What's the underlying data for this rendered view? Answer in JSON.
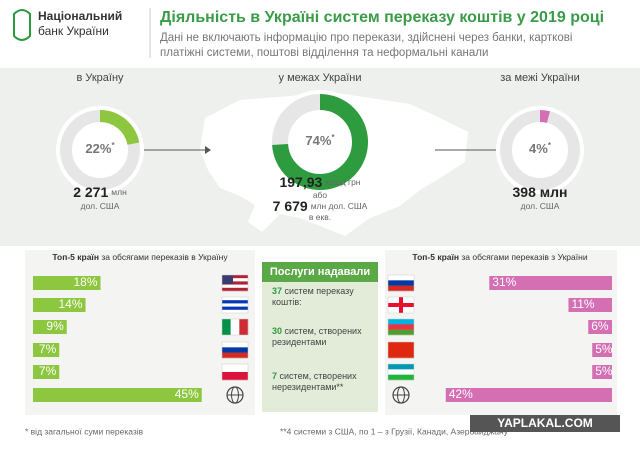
{
  "header": {
    "logo": [
      "Національний",
      "банк України"
    ],
    "title": "Діяльність в Україні систем переказу коштів у 2019 році",
    "subtitle": [
      "Дані не включають інформацію про перекази, здійснені через банки, карткові",
      "платіжні системи, поштові відділення та неформальні канали"
    ]
  },
  "chart_data": [
    {
      "type": "donut",
      "title": "в Україну",
      "values": [
        22
      ],
      "value_labels": [
        "22%"
      ],
      "note_mark": "*",
      "color": "#8dc63f",
      "amount_lines": [
        [
          "2 271",
          "млн"
        ],
        [
          "дол. США"
        ]
      ]
    },
    {
      "type": "donut",
      "title": "у межах України",
      "values": [
        74
      ],
      "value_labels": [
        "74%"
      ],
      "note_mark": "*",
      "color": "#2e9b3e",
      "amount_lines": [
        [
          "197,93",
          "млрд грн"
        ],
        [
          "або"
        ],
        [
          "7 679",
          "млн дол. США"
        ],
        [
          "в екв."
        ]
      ]
    },
    {
      "type": "donut",
      "title": "за межі України",
      "values": [
        4
      ],
      "value_labels": [
        "4%"
      ],
      "note_mark": "*",
      "color": "#d46fb4",
      "amount_lines": [
        [
          "398 млн"
        ],
        [
          "дол. США"
        ]
      ]
    },
    {
      "type": "bar",
      "title_strong": "Топ-5 країн",
      "title": " за обсягами переказів в Україну",
      "categories": [
        null,
        null,
        null,
        null,
        null,
        null
      ],
      "values": [
        18,
        14,
        9,
        7,
        7,
        45
      ],
      "value_labels": [
        "18%",
        "14%",
        "9%",
        "7%",
        "7%",
        "45%"
      ],
      "color": "#8dc63f",
      "xlim": [
        0,
        48
      ],
      "direction": "left-to-right"
    },
    {
      "type": "bar",
      "title_strong": "Топ-5 країн",
      "title": " за обсягами переказів з України",
      "categories": [
        null,
        null,
        null,
        null,
        null,
        null
      ],
      "values": [
        31,
        11,
        6,
        5,
        5,
        42
      ],
      "value_labels": [
        "31%",
        "11%",
        "6%",
        "5%",
        "5%",
        "42%"
      ],
      "color": "#d46fb4",
      "xlim": [
        0,
        48
      ],
      "direction": "right-to-left"
    }
  ],
  "services": {
    "title": "Послуги надавали",
    "items": [
      {
        "number": "37",
        "lines": [
          " систем переказу",
          "коштів:"
        ]
      },
      {
        "number": "30",
        "lines": [
          " систем, створених",
          "резидентами"
        ]
      },
      {
        "number": "7",
        "lines": [
          " систем, створених",
          "нерезидентами**"
        ]
      }
    ]
  },
  "footnotes": [
    "* від загальної суми переказів",
    "**4 системи з США, по 1 – з Грузії, Канади, Азербайджану"
  ],
  "watermark": "YAPLAKAL.COM"
}
